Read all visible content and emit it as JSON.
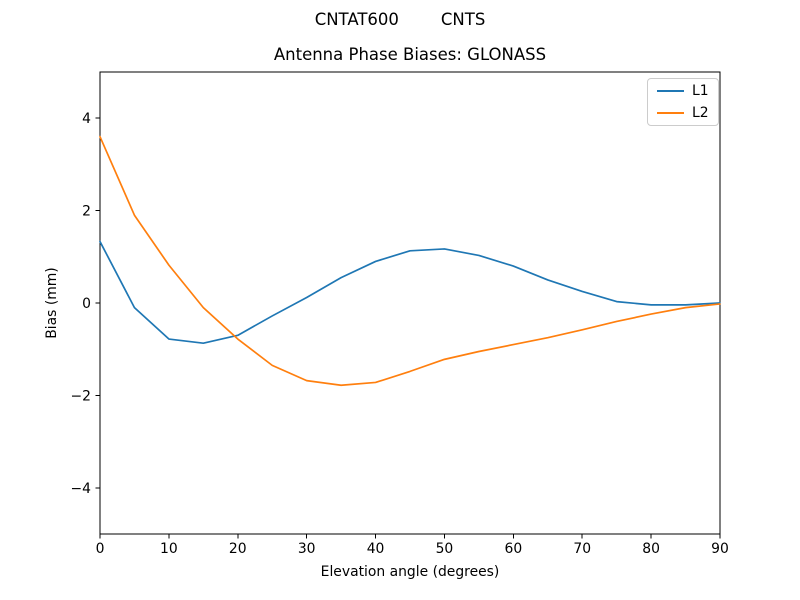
{
  "chart_data": {
    "type": "line",
    "suptitle": "CNTAT600        CNTS",
    "title": "Antenna Phase Biases: GLONASS",
    "xlabel": "Elevation angle (degrees)",
    "ylabel": "Bias (mm)",
    "xlim": [
      0,
      90
    ],
    "ylim": [
      -5,
      5
    ],
    "x_tick_values": [
      0,
      10,
      20,
      30,
      40,
      50,
      60,
      70,
      80,
      90
    ],
    "x_tick_labels": [
      "0",
      "10",
      "20",
      "30",
      "40",
      "50",
      "60",
      "70",
      "80",
      "90"
    ],
    "y_tick_values": [
      -4,
      -2,
      0,
      2,
      4
    ],
    "y_tick_labels": [
      "−4",
      "−2",
      "0",
      "2",
      "4"
    ],
    "grid": false,
    "legend_position": "upper right",
    "axis_color": "#000000",
    "background": "#ffffff",
    "x": [
      0,
      5,
      10,
      15,
      20,
      25,
      30,
      35,
      40,
      45,
      50,
      55,
      60,
      65,
      70,
      75,
      80,
      85,
      90
    ],
    "series": [
      {
        "name": "L1",
        "color": "#1f77b4",
        "values": [
          1.33,
          -0.1,
          -0.78,
          -0.87,
          -0.7,
          -0.28,
          0.12,
          0.55,
          0.9,
          1.13,
          1.17,
          1.03,
          0.8,
          0.5,
          0.25,
          0.03,
          -0.04,
          -0.04,
          0.0
        ]
      },
      {
        "name": "L2",
        "color": "#ff7f0e",
        "values": [
          3.6,
          1.9,
          0.82,
          -0.1,
          -0.78,
          -1.35,
          -1.68,
          -1.78,
          -1.72,
          -1.48,
          -1.22,
          -1.05,
          -0.9,
          -0.75,
          -0.58,
          -0.4,
          -0.24,
          -0.1,
          -0.02
        ]
      }
    ]
  }
}
